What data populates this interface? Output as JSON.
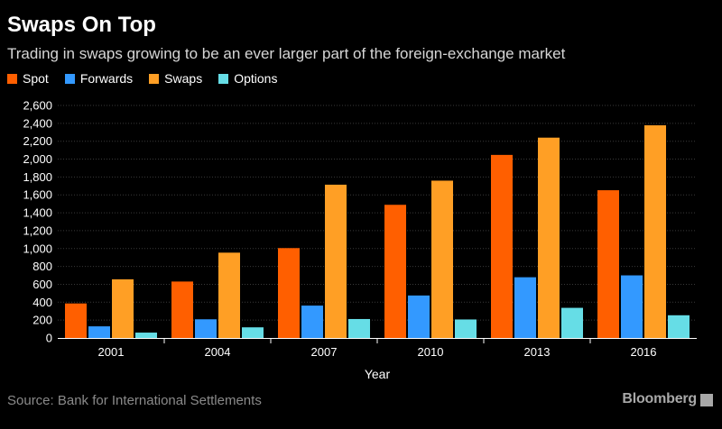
{
  "header": {
    "title": "Swaps On Top",
    "subtitle": "Trading in swaps growing to be an ever larger part of the foreign-exchange market"
  },
  "legend": [
    {
      "label": "Spot",
      "color": "#ff5f00"
    },
    {
      "label": "Forwards",
      "color": "#3399ff"
    },
    {
      "label": "Swaps",
      "color": "#ff9f25"
    },
    {
      "label": "Options",
      "color": "#66dde6"
    }
  ],
  "footer": {
    "source": "Source: Bank for International Settlements",
    "brand": "Bloomberg",
    "brand_icon": "bloomberg-icon"
  },
  "chart_data": {
    "type": "bar",
    "xlabel": "Year",
    "ylabel": "",
    "categories": [
      "2001",
      "2004",
      "2007",
      "2010",
      "2013",
      "2016"
    ],
    "ylim": [
      0,
      2600
    ],
    "yticks": [
      0,
      200,
      400,
      600,
      800,
      1000,
      1200,
      1400,
      1600,
      1800,
      2000,
      2200,
      2400,
      2600
    ],
    "ytick_labels": [
      "0",
      "200",
      "400",
      "600",
      "800",
      "1,000",
      "1,200",
      "1,400",
      "1,600",
      "1,800",
      "2,000",
      "2,200",
      "2,400",
      "2,600"
    ],
    "grid": true,
    "legend_position": "top-left",
    "series": [
      {
        "name": "Spot",
        "color": "#ff5f00",
        "values": [
          386,
          631,
          1005,
          1489,
          2047,
          1652
        ]
      },
      {
        "name": "Forwards",
        "color": "#3399ff",
        "values": [
          130,
          209,
          362,
          475,
          679,
          700
        ]
      },
      {
        "name": "Swaps",
        "color": "#ff9f25",
        "values": [
          656,
          954,
          1714,
          1759,
          2240,
          2378
        ]
      },
      {
        "name": "Options",
        "color": "#66dde6",
        "values": [
          60,
          119,
          212,
          207,
          337,
          254
        ]
      }
    ]
  }
}
